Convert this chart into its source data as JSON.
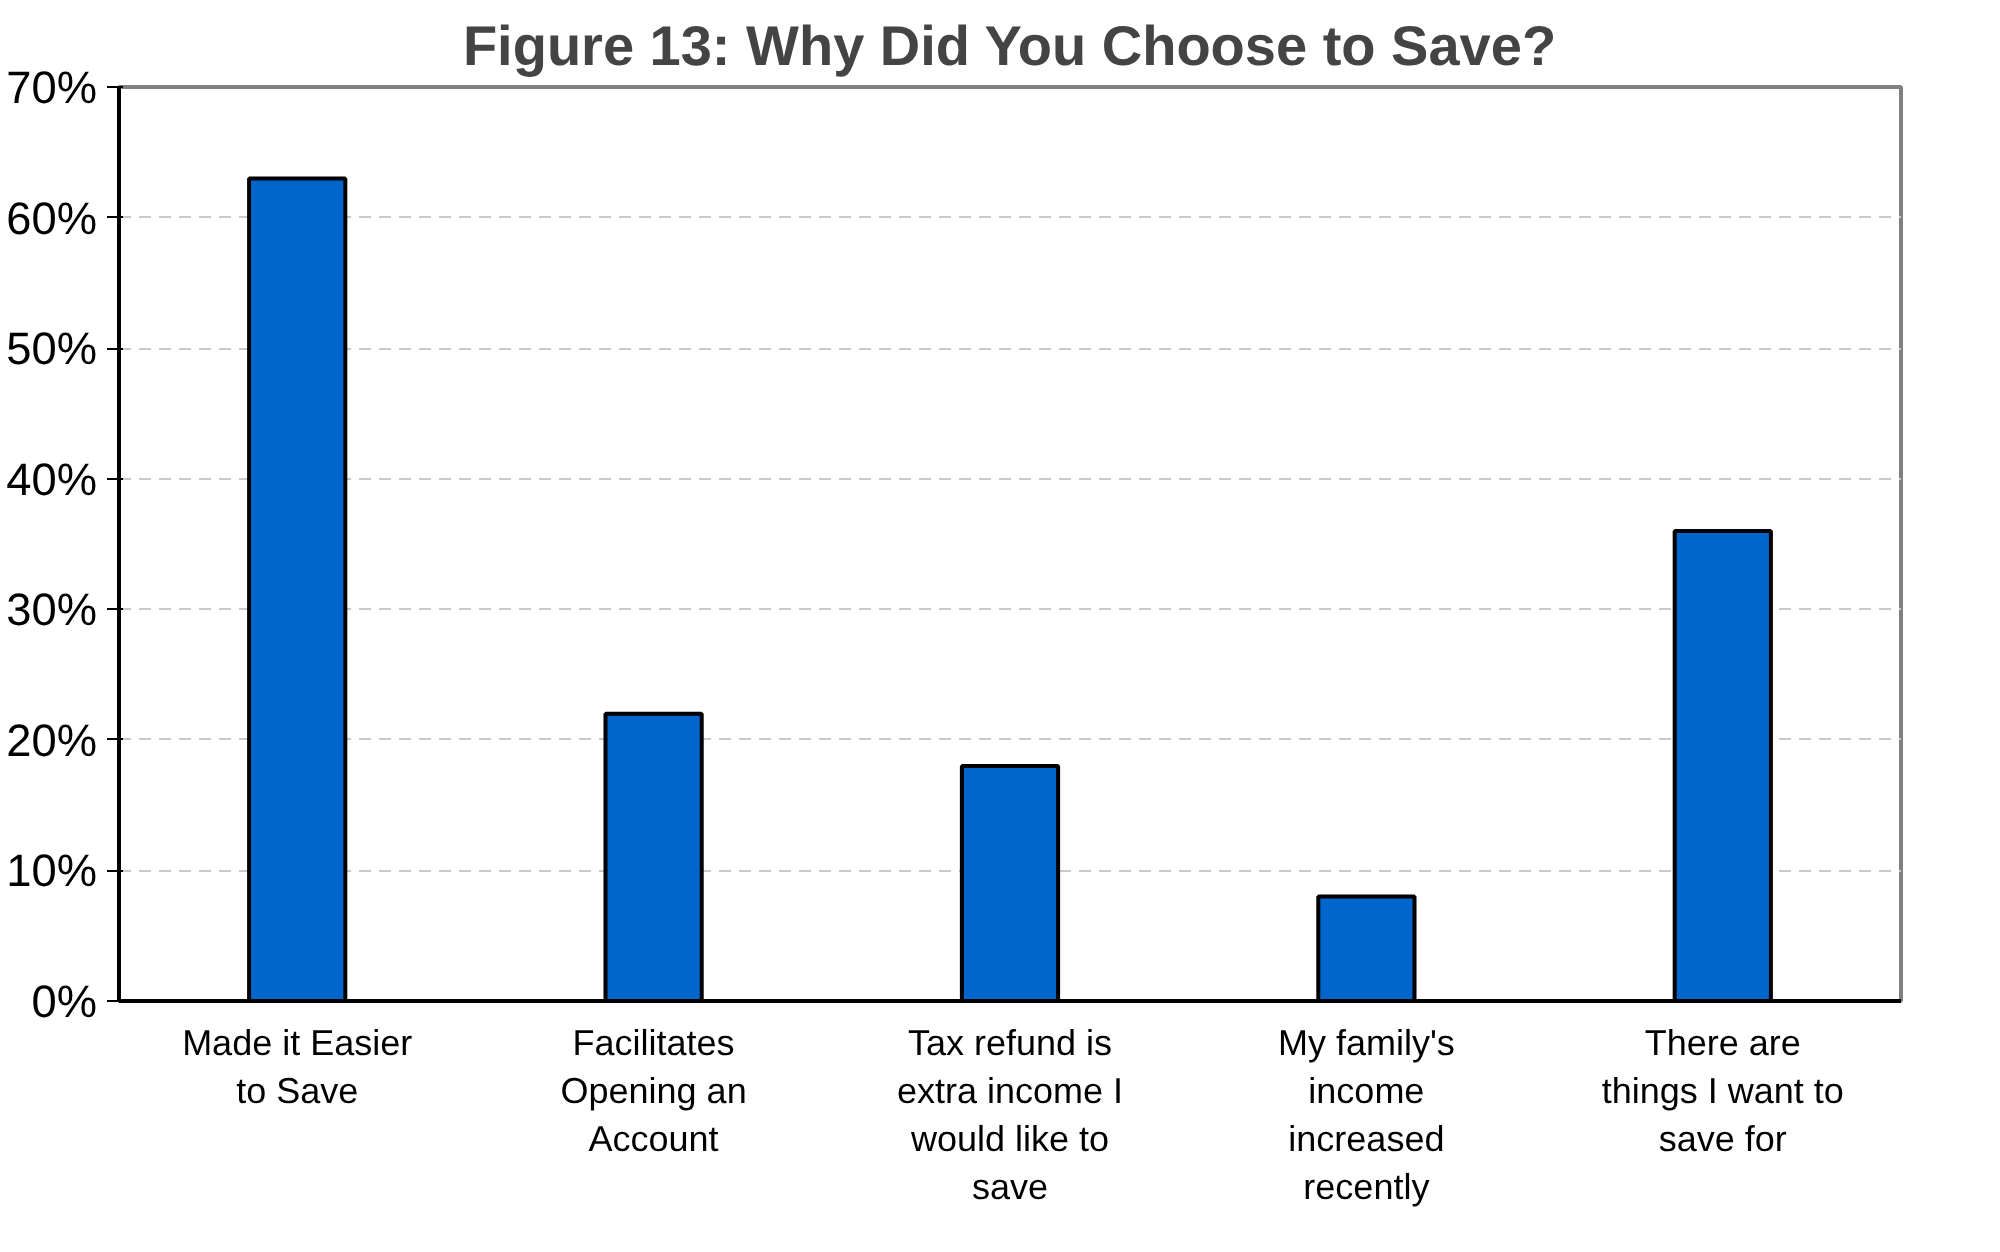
{
  "chart_data": {
    "type": "bar",
    "title": "Figure 13: Why Did You Choose to Save?",
    "categories": [
      "Made it Easier\nto Save",
      "Facilitates\nOpening an\nAccount",
      "Tax refund is\nextra income I\nwould like to\nsave",
      "My family's\nincome\nincreased\nrecently",
      "There are\nthings I want to\nsave for"
    ],
    "values": [
      63,
      22,
      18,
      8,
      36
    ],
    "color": "#0066cc",
    "ylim": [
      0,
      70
    ],
    "yticks": [
      {
        "value": 0,
        "label": "0%"
      },
      {
        "value": 10,
        "label": "10%"
      },
      {
        "value": 20,
        "label": "20%"
      },
      {
        "value": 30,
        "label": "30%"
      },
      {
        "value": 40,
        "label": "40%"
      },
      {
        "value": 50,
        "label": "50%"
      },
      {
        "value": 60,
        "label": "60%"
      },
      {
        "value": 70,
        "label": "70%"
      }
    ],
    "grid": "y"
  }
}
